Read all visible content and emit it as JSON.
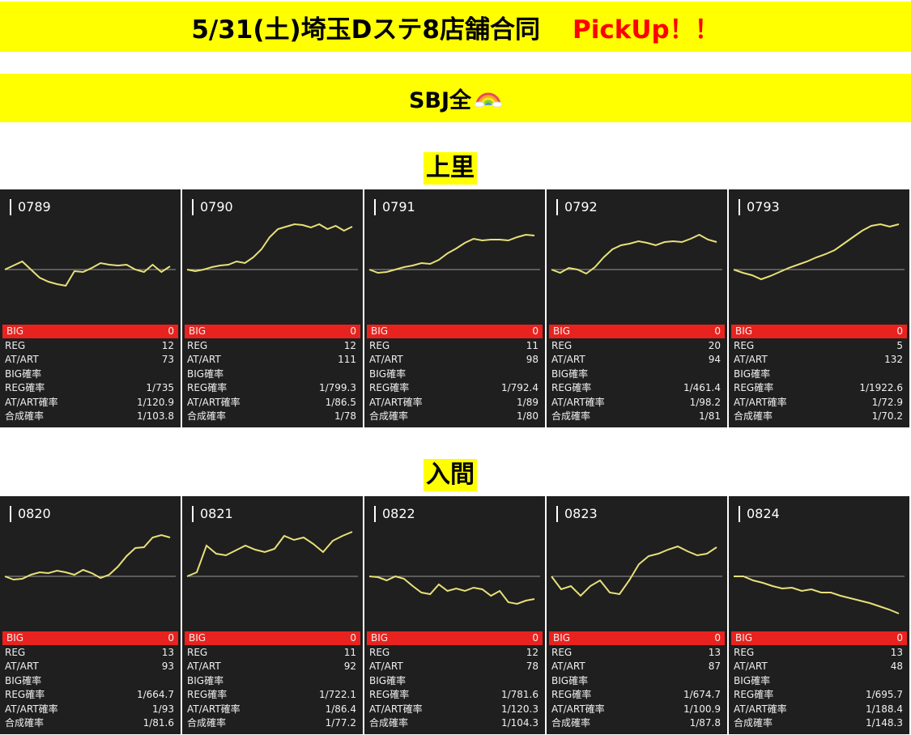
{
  "header": {
    "title": "5/31(土)埼玉Dステ8店舗合同",
    "pickup": "PickUp！！",
    "subtitle": "SBJ全"
  },
  "colors": {
    "banner": "#ffff00",
    "pickup": "#ff0000",
    "big_row": "#e8231f",
    "line": "#e8e07a",
    "card_bg": "#1f1f1f"
  },
  "labels": {
    "big": "BIG",
    "reg": "REG",
    "at": "AT/ART",
    "big_rate": "BIG確率",
    "reg_rate": "REG確率",
    "at_rate": "AT/ART確率",
    "total_rate": "合成確率"
  },
  "stores": [
    {
      "name": "上里",
      "machines": [
        {
          "id": "0789",
          "big": "0",
          "reg": "12",
          "at": "73",
          "reg_rate": "1/735",
          "at_rate": "1/120.9",
          "total_rate": "1/103.8",
          "graph": [
            0,
            5,
            10,
            0,
            -10,
            -15,
            -18,
            -20,
            -2,
            -3,
            2,
            8,
            6,
            5,
            6,
            0,
            -3,
            6,
            -3,
            4
          ]
        },
        {
          "id": "0790",
          "big": "0",
          "reg": "12",
          "at": "111",
          "reg_rate": "1/799.3",
          "at_rate": "1/86.5",
          "total_rate": "1/78",
          "graph": [
            0,
            -2,
            0,
            3,
            5,
            6,
            10,
            8,
            15,
            25,
            40,
            50,
            53,
            56,
            55,
            52,
            56,
            50,
            54,
            48,
            53
          ]
        },
        {
          "id": "0791",
          "big": "0",
          "reg": "11",
          "at": "98",
          "reg_rate": "1/792.4",
          "at_rate": "1/89",
          "total_rate": "1/80",
          "graph": [
            0,
            -4,
            -3,
            0,
            3,
            5,
            8,
            7,
            12,
            20,
            26,
            33,
            38,
            36,
            37,
            37,
            36,
            40,
            43,
            42
          ]
        },
        {
          "id": "0792",
          "big": "0",
          "reg": "20",
          "at": "94",
          "reg_rate": "1/461.4",
          "at_rate": "1/98.2",
          "total_rate": "1/81",
          "graph": [
            0,
            -4,
            2,
            0,
            -5,
            3,
            15,
            25,
            30,
            32,
            35,
            33,
            30,
            34,
            35,
            34,
            38,
            43,
            37,
            34
          ]
        },
        {
          "id": "0793",
          "big": "0",
          "reg": "5",
          "at": "132",
          "reg_rate": "1/1922.6",
          "at_rate": "1/72.9",
          "total_rate": "1/70.2",
          "graph": [
            0,
            -4,
            -7,
            -12,
            -8,
            -3,
            2,
            6,
            10,
            15,
            19,
            24,
            32,
            40,
            48,
            54,
            56,
            53,
            56
          ]
        }
      ]
    },
    {
      "name": "入間",
      "machines": [
        {
          "id": "0820",
          "big": "0",
          "reg": "13",
          "at": "93",
          "reg_rate": "1/664.7",
          "at_rate": "1/93",
          "total_rate": "1/81.6",
          "graph": [
            0,
            -4,
            -3,
            2,
            5,
            4,
            7,
            5,
            2,
            8,
            4,
            -2,
            2,
            12,
            25,
            35,
            36,
            48,
            51,
            48
          ]
        },
        {
          "id": "0821",
          "big": "0",
          "reg": "11",
          "at": "92",
          "reg_rate": "1/722.1",
          "at_rate": "1/86.4",
          "total_rate": "1/77.2",
          "graph": [
            0,
            5,
            38,
            28,
            26,
            32,
            38,
            33,
            30,
            34,
            50,
            45,
            48,
            40,
            30,
            44,
            50,
            55
          ]
        },
        {
          "id": "0822",
          "big": "0",
          "reg": "12",
          "at": "78",
          "reg_rate": "1/781.6",
          "at_rate": "1/120.3",
          "total_rate": "1/104.3",
          "graph": [
            0,
            -1,
            -5,
            0,
            -3,
            -12,
            -20,
            -22,
            -10,
            -18,
            -15,
            -18,
            -14,
            -16,
            -24,
            -18,
            -32,
            -34,
            -30,
            -28
          ]
        },
        {
          "id": "0823",
          "big": "0",
          "reg": "13",
          "at": "87",
          "reg_rate": "1/674.7",
          "at_rate": "1/100.9",
          "total_rate": "1/87.8",
          "graph": [
            0,
            -16,
            -12,
            -24,
            -12,
            -5,
            -20,
            -22,
            -5,
            15,
            25,
            28,
            33,
            37,
            31,
            26,
            28,
            36
          ]
        },
        {
          "id": "0824",
          "big": "0",
          "reg": "13",
          "at": "48",
          "reg_rate": "1/695.7",
          "at_rate": "1/188.4",
          "total_rate": "1/148.3",
          "graph": [
            0,
            0,
            -5,
            -8,
            -12,
            -15,
            -14,
            -18,
            -16,
            -20,
            -20,
            -24,
            -27,
            -30,
            -33,
            -37,
            -41,
            -46
          ]
        }
      ]
    }
  ]
}
